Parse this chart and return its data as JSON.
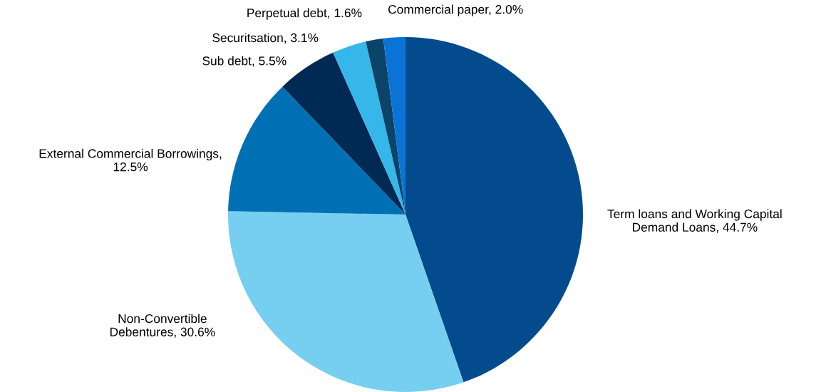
{
  "chart_data": {
    "type": "pie",
    "categories": [
      "Term loans and Working Capital Demand Loans, 44.7%",
      "Non-Convertible Debentures, 30.6%",
      "External Commercial Borrowings, 12.5%",
      "Sub debt, 5.5%",
      "Securitsation, 3.1%",
      "Perpetual debt, 1.6%",
      "Commercial paper, 2.0%"
    ],
    "values": [
      44.7,
      30.6,
      12.5,
      5.5,
      3.1,
      1.6,
      2.0
    ],
    "colors": [
      "#034b8c",
      "#76cff0",
      "#0070b4",
      "#002a54",
      "#36b7e9",
      "#0c4469",
      "#0a74d6"
    ],
    "legend": false
  }
}
